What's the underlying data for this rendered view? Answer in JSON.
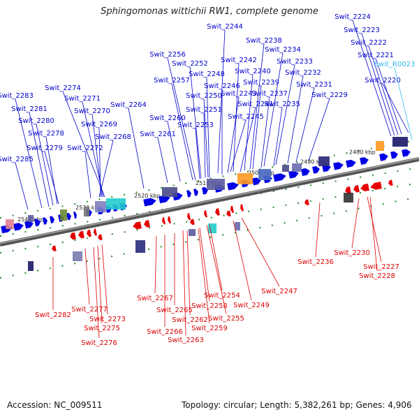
{
  "title": "Sphingomonas wittichii RW1, complete genome",
  "footer": {
    "accession": "Accession: NC_009511",
    "summary": "Topology: circular; Length: 5,382,261 bp; Genes: 4,906"
  },
  "colors": {
    "forward_gene": "#0000e6",
    "reverse_gene": "#e60000",
    "forward_label": "#0000cc",
    "reverse_label": "#dd0000",
    "rna_label": "#33bbee",
    "backbone": "#777777"
  },
  "ticks": [
    "2480 kbp",
    "2490 kbp",
    "2500 kbp",
    "2510 kbp",
    "2520 kbp",
    "2530 kbp",
    "2540 kbp"
  ],
  "forward_labels": [
    "Swit_2224",
    "Swit_2223",
    "Swit_2222",
    "Swit_2221",
    "Swit_2220",
    "Swit_2244",
    "Swit_2238",
    "Swit_2234",
    "Swit_2233",
    "Swit_2232",
    "Swit_2231",
    "Swit_2229",
    "Swit_2242",
    "Swit_2240",
    "Swit_2239",
    "Swit_2237",
    "Swit_2235",
    "Swit_2256",
    "Swit_2252",
    "Swit_2248",
    "Swit_2246",
    "Swit_2243",
    "Swit_2241",
    "Swit_2245",
    "Swit_2257",
    "Swit_2250",
    "Swit_2251",
    "Swit_2253",
    "Swit_2260",
    "Swit_2261",
    "Swit_2264",
    "Swit_2274",
    "Swit_2271",
    "Swit_2270",
    "Swit_2269",
    "Swit_2268",
    "Swit_2272",
    "Swit_2283",
    "Swit_2281",
    "Swit_2280",
    "Swit_2278",
    "Swit_2279",
    "Swit_2285"
  ],
  "rna_labels": [
    "Swit_R0023"
  ],
  "reverse_labels": [
    "Swit_2230",
    "Swit_2227",
    "Swit_2228",
    "Swit_2236",
    "Swit_2247",
    "Swit_2249",
    "Swit_2254",
    "Swit_2255",
    "Swit_2258",
    "Swit_2259",
    "Swit_2262",
    "Swit_2263",
    "Swit_2265",
    "Swit_2266",
    "Swit_2267",
    "Swit_2273",
    "Swit_2275",
    "Swit_2276",
    "Swit_2277",
    "Swit_2282"
  ]
}
